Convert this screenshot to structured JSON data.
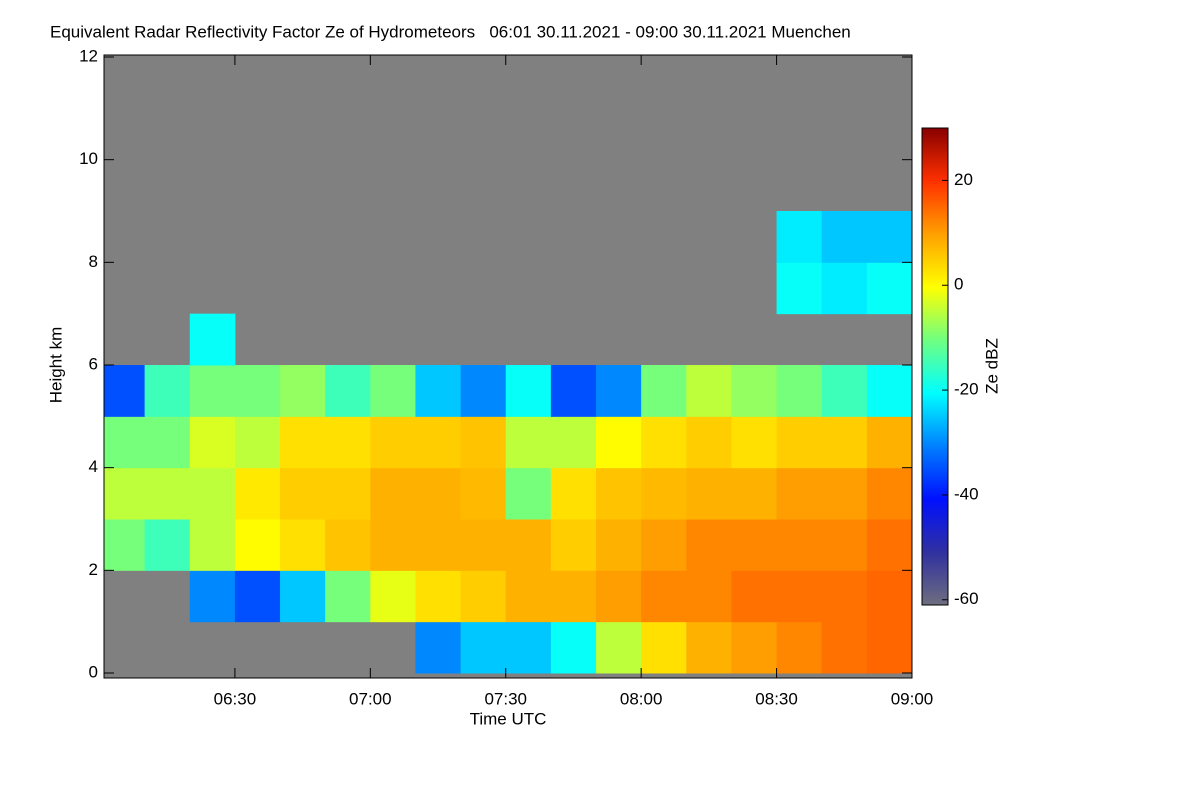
{
  "chart_data": {
    "type": "heatmap",
    "title": "Equivalent Radar Reflectivity Factor Ze of Hydrometeors   06:01 30.11.2021 - 09:00 30.11.2021 Muenchen",
    "xlabel": "Time UTC",
    "ylabel": "Height km",
    "colorbar_label": "Ze dBZ",
    "xlim": [
      361,
      540
    ],
    "xticks": [
      {
        "value": 390,
        "label": "06:30"
      },
      {
        "value": 420,
        "label": "07:00"
      },
      {
        "value": 450,
        "label": "07:30"
      },
      {
        "value": 480,
        "label": "08:00"
      },
      {
        "value": 510,
        "label": "08:30"
      },
      {
        "value": 540,
        "label": "09:00"
      }
    ],
    "ylim": [
      0,
      12
    ],
    "yticks": [
      0,
      2,
      4,
      6,
      8,
      10,
      12
    ],
    "clim": [
      -61,
      30
    ],
    "cticks": [
      -60,
      -40,
      -20,
      0,
      20
    ],
    "colormap": [
      "#6e6e80",
      "#3030a0",
      "#0010ff",
      "#0080ff",
      "#00ffff",
      "#70ff80",
      "#ffff00",
      "#ffa000",
      "#ff3000",
      "#880000"
    ],
    "missing_color": "#808080",
    "x_bins": [
      361,
      370,
      380,
      390,
      400,
      410,
      420,
      430,
      440,
      450,
      460,
      470,
      480,
      490,
      500,
      510,
      520,
      530,
      540
    ],
    "y_bins": [
      0,
      1,
      2,
      3,
      4,
      5,
      6,
      7,
      8,
      9
    ],
    "z": [
      [
        null,
        null,
        null,
        null,
        null,
        null,
        null,
        -30,
        -25,
        -25,
        -20,
        -5,
        3,
        8,
        10,
        12,
        14,
        15
      ],
      [
        null,
        null,
        -30,
        -35,
        -25,
        -10,
        -2,
        3,
        5,
        8,
        8,
        10,
        12,
        12,
        14,
        14,
        14,
        15
      ],
      [
        -10,
        -15,
        -5,
        0,
        3,
        6,
        8,
        8,
        8,
        8,
        5,
        8,
        10,
        12,
        12,
        12,
        12,
        14
      ],
      [
        -5,
        -5,
        -5,
        2,
        5,
        5,
        8,
        8,
        7,
        -10,
        3,
        6,
        7,
        8,
        8,
        10,
        10,
        12
      ],
      [
        -10,
        -10,
        -3,
        -5,
        3,
        3,
        5,
        5,
        6,
        -5,
        -5,
        0,
        3,
        5,
        3,
        5,
        5,
        8
      ],
      [
        -35,
        -15,
        -10,
        -10,
        -8,
        -15,
        -10,
        -25,
        -30,
        -20,
        -35,
        -30,
        -10,
        -5,
        -8,
        -10,
        -15,
        -20
      ],
      [
        null,
        null,
        -20,
        null,
        null,
        null,
        null,
        null,
        null,
        null,
        null,
        null,
        null,
        null,
        null,
        null,
        null,
        null
      ],
      [
        null,
        null,
        null,
        null,
        null,
        null,
        null,
        null,
        null,
        null,
        null,
        null,
        null,
        null,
        null,
        -20,
        -22,
        -20
      ],
      [
        null,
        null,
        null,
        null,
        null,
        null,
        null,
        null,
        null,
        null,
        null,
        null,
        null,
        null,
        null,
        -22,
        -25,
        -25
      ]
    ]
  }
}
